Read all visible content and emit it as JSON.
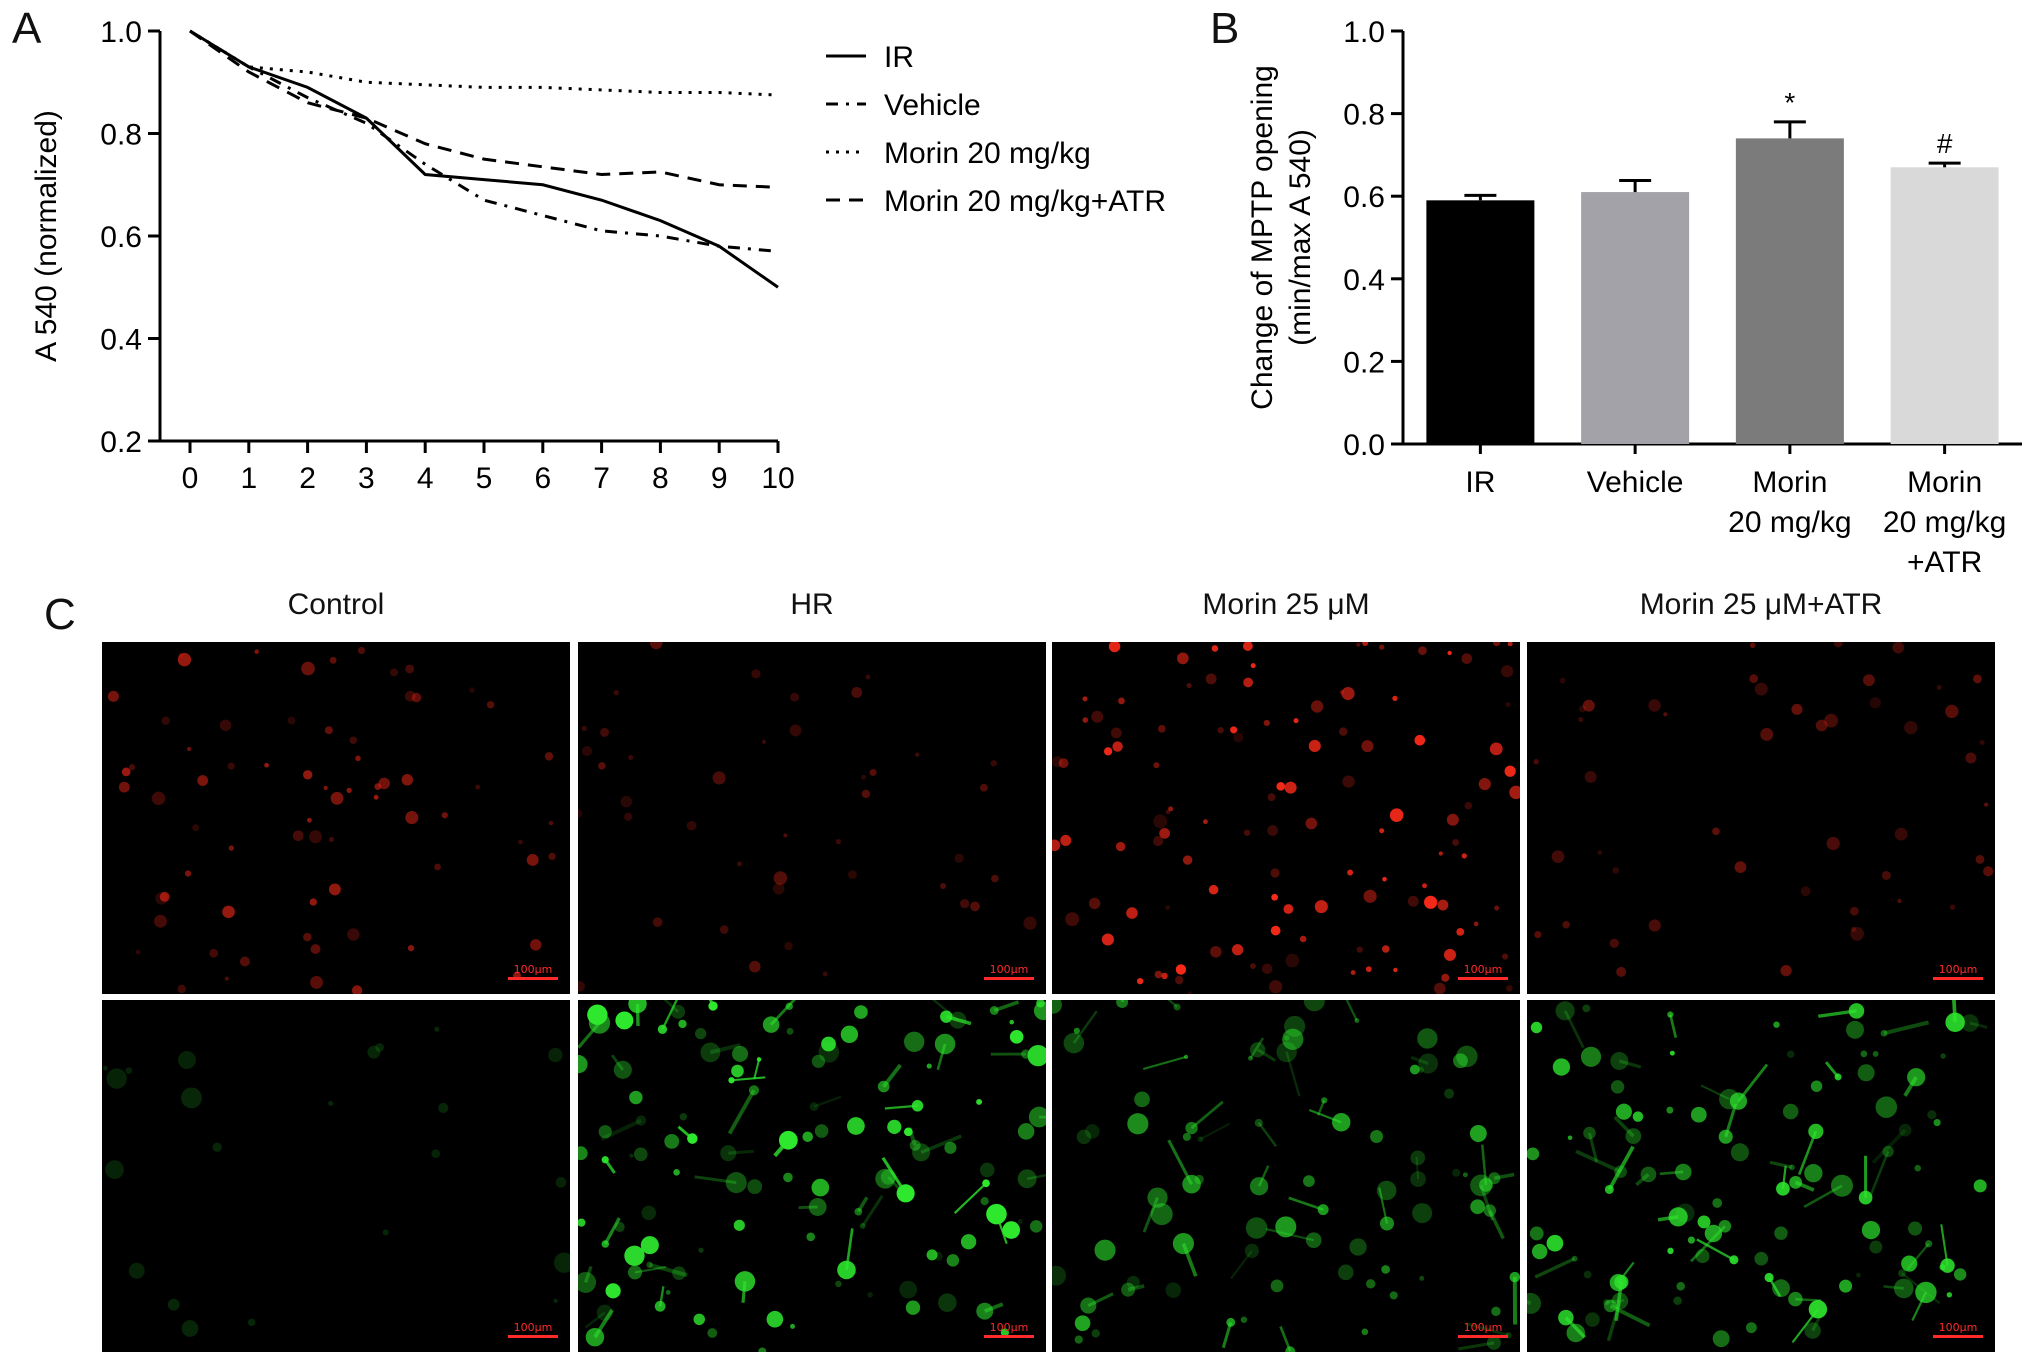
{
  "panels": {
    "a": "A",
    "b": "B",
    "c": "C"
  },
  "chart_data": [
    {
      "type": "line",
      "panel": "A",
      "ylabel": "A 540 (normalized)",
      "xlabel": "",
      "xlim": [
        0,
        10
      ],
      "ylim": [
        0.2,
        1.0
      ],
      "x": [
        0,
        1,
        2,
        3,
        4,
        5,
        6,
        7,
        8,
        9,
        10
      ],
      "x_ticks": [
        "0",
        "1",
        "2",
        "3",
        "4",
        "5",
        "6",
        "7",
        "8",
        "9",
        "10"
      ],
      "y_ticks": [
        "0.2",
        "0.4",
        "0.6",
        "0.8",
        "1.0"
      ],
      "legend_position": "top-right",
      "series": [
        {
          "name": "IR",
          "style": "solid",
          "values": [
            1.0,
            0.93,
            0.89,
            0.83,
            0.72,
            0.71,
            0.7,
            0.67,
            0.63,
            0.58,
            0.5
          ]
        },
        {
          "name": "Vehicle",
          "style": "dashdot",
          "values": [
            1.0,
            0.93,
            0.87,
            0.82,
            0.74,
            0.67,
            0.64,
            0.61,
            0.6,
            0.58,
            0.57
          ]
        },
        {
          "name": "Morin 20 mg/kg",
          "style": "dotted",
          "values": [
            1.0,
            0.93,
            0.92,
            0.9,
            0.895,
            0.89,
            0.89,
            0.885,
            0.88,
            0.88,
            0.875
          ]
        },
        {
          "name": "Morin 20 mg/kg+ATR",
          "style": "dashed",
          "values": [
            1.0,
            0.92,
            0.86,
            0.83,
            0.78,
            0.75,
            0.735,
            0.72,
            0.725,
            0.7,
            0.695
          ]
        }
      ]
    },
    {
      "type": "bar",
      "panel": "B",
      "ylabel_lines": [
        "Change of MPTP opening",
        "(min/max A 540)"
      ],
      "xlabel": "",
      "ylim": [
        0.0,
        1.0
      ],
      "y_ticks": [
        "0.0",
        "0.2",
        "0.4",
        "0.6",
        "0.8",
        "1.0"
      ],
      "categories": [
        {
          "lines": [
            "IR"
          ]
        },
        {
          "lines": [
            "Vehicle"
          ]
        },
        {
          "lines": [
            "Morin",
            "20 mg/kg"
          ]
        },
        {
          "lines": [
            "Morin",
            "20 mg/kg",
            "+ATR"
          ]
        }
      ],
      "values": [
        0.59,
        0.61,
        0.74,
        0.67
      ],
      "errors": [
        0.012,
        0.028,
        0.04,
        0.01
      ],
      "annotations": [
        "",
        "",
        "*",
        "#"
      ],
      "colors": [
        "#000000",
        "#a2a2a8",
        "#7b7b7b",
        "#d9d9d9"
      ]
    }
  ],
  "micrographs": {
    "columns": [
      "Control",
      "HR",
      "Morin 25 μM",
      "Morin 25 μM+ATR"
    ],
    "scale_label": "100μm",
    "rows": [
      {
        "channel": "red",
        "color": "#ff2a1a",
        "intensity": [
          0.45,
          0.2,
          0.85,
          0.25
        ]
      },
      {
        "channel": "green",
        "color": "#2ee82e",
        "intensity": [
          0.02,
          0.9,
          0.55,
          0.75
        ]
      }
    ]
  }
}
